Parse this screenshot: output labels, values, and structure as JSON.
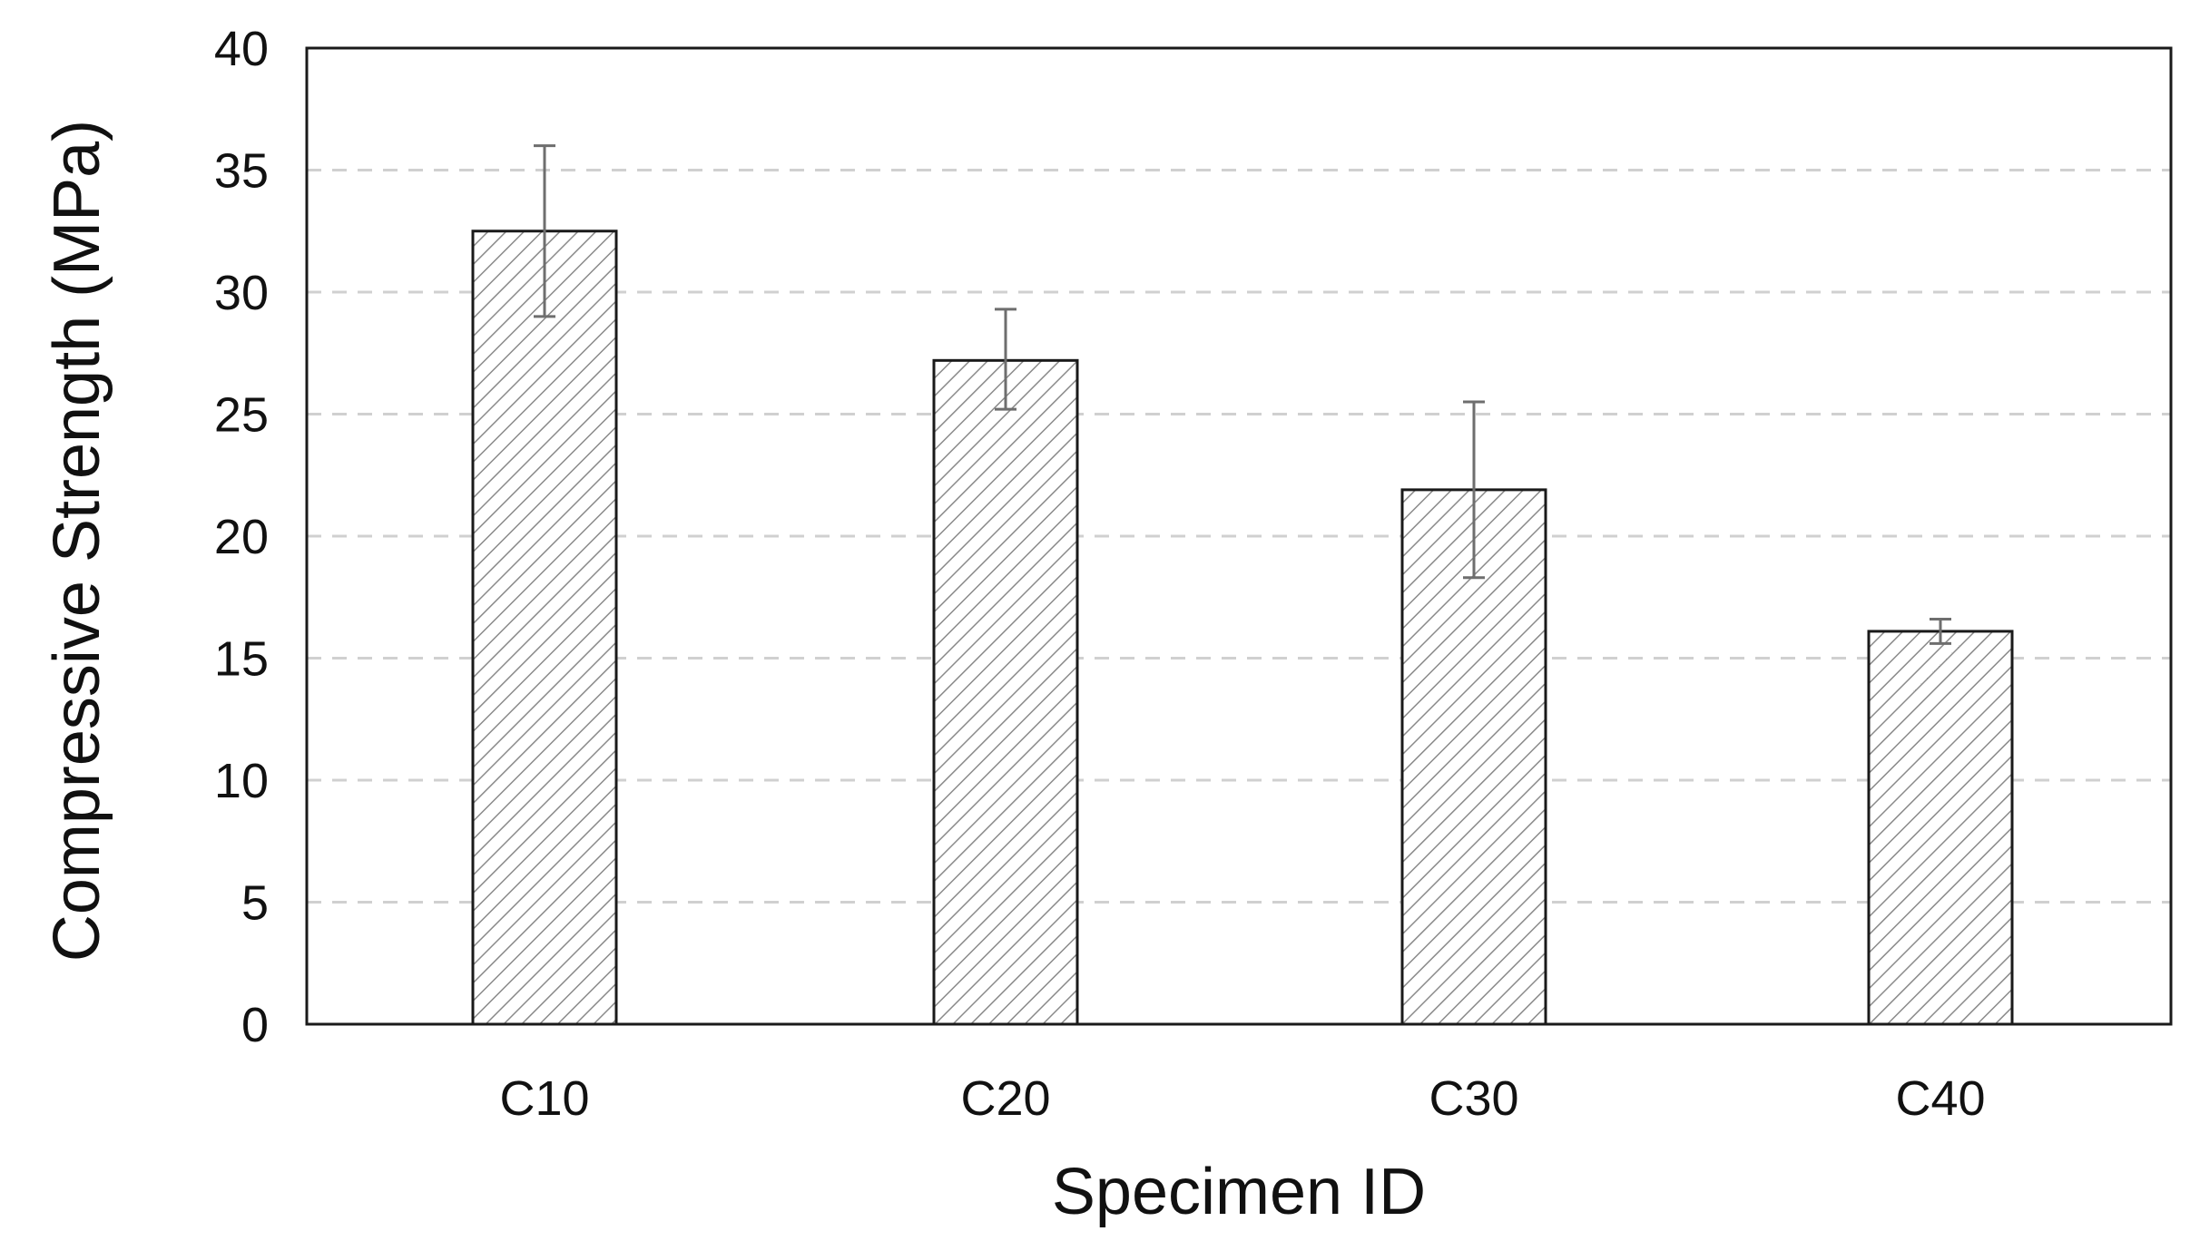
{
  "chart_data": {
    "type": "bar",
    "title": "",
    "xlabel": "Specimen ID",
    "ylabel": "Compressive Strength (MPa)",
    "categories": [
      "C10",
      "C20",
      "C30",
      "C40"
    ],
    "values": [
      32.5,
      27.2,
      21.9,
      16.1
    ],
    "error_upper": [
      36.0,
      29.3,
      25.5,
      16.6
    ],
    "error_lower": [
      29.0,
      25.2,
      18.3,
      15.6
    ],
    "ylim": [
      0,
      40
    ],
    "yticks": [
      "0",
      "5",
      "10",
      "15",
      "20",
      "25",
      "30",
      "35",
      "40"
    ],
    "grid": "horizontal dashed",
    "bar_fill": "diagonal hatch",
    "colors": {
      "bar_edge": "#1a1a1a",
      "hatch": "#8a8a8a",
      "grid": "#d0d0d0",
      "error_bar": "#6e6e6e",
      "axis": "#1a1a1a"
    }
  }
}
